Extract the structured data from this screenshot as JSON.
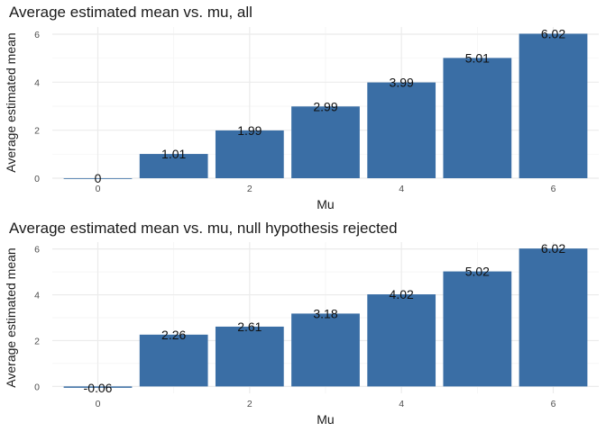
{
  "chart_data": [
    {
      "type": "bar",
      "title": "Average estimated mean vs. mu, all",
      "xlabel": "Mu",
      "ylabel": "Average estimated mean",
      "x": [
        0,
        1,
        2,
        3,
        4,
        5,
        6
      ],
      "values": [
        0.0,
        1.01,
        1.99,
        2.99,
        3.99,
        5.01,
        6.02
      ],
      "data_labels": [
        "0",
        "1.01",
        "1.99",
        "2.99",
        "3.99",
        "5.01",
        "6.02"
      ],
      "x_ticks": [
        0,
        2,
        4,
        6
      ],
      "y_ticks": [
        0,
        2,
        4,
        6
      ],
      "xlim": [
        -0.6,
        6.6
      ],
      "ylim": [
        0,
        6.3
      ],
      "bar_color": "#3A6EA5",
      "grid": true
    },
    {
      "type": "bar",
      "title": "Average estimated mean vs. mu, null hypothesis rejected",
      "xlabel": "Mu",
      "ylabel": "Average estimated mean",
      "x": [
        0,
        1,
        2,
        3,
        4,
        5,
        6
      ],
      "values": [
        -0.06,
        2.26,
        2.61,
        3.18,
        4.02,
        5.02,
        6.02
      ],
      "data_labels": [
        "-0.06",
        "2.26",
        "2.61",
        "3.18",
        "4.02",
        "5.02",
        "6.02"
      ],
      "x_ticks": [
        0,
        2,
        4,
        6
      ],
      "y_ticks": [
        0,
        2,
        4,
        6
      ],
      "xlim": [
        -0.6,
        6.6
      ],
      "ylim": [
        -0.3,
        6.3
      ],
      "bar_color": "#3A6EA5",
      "grid": true
    }
  ]
}
